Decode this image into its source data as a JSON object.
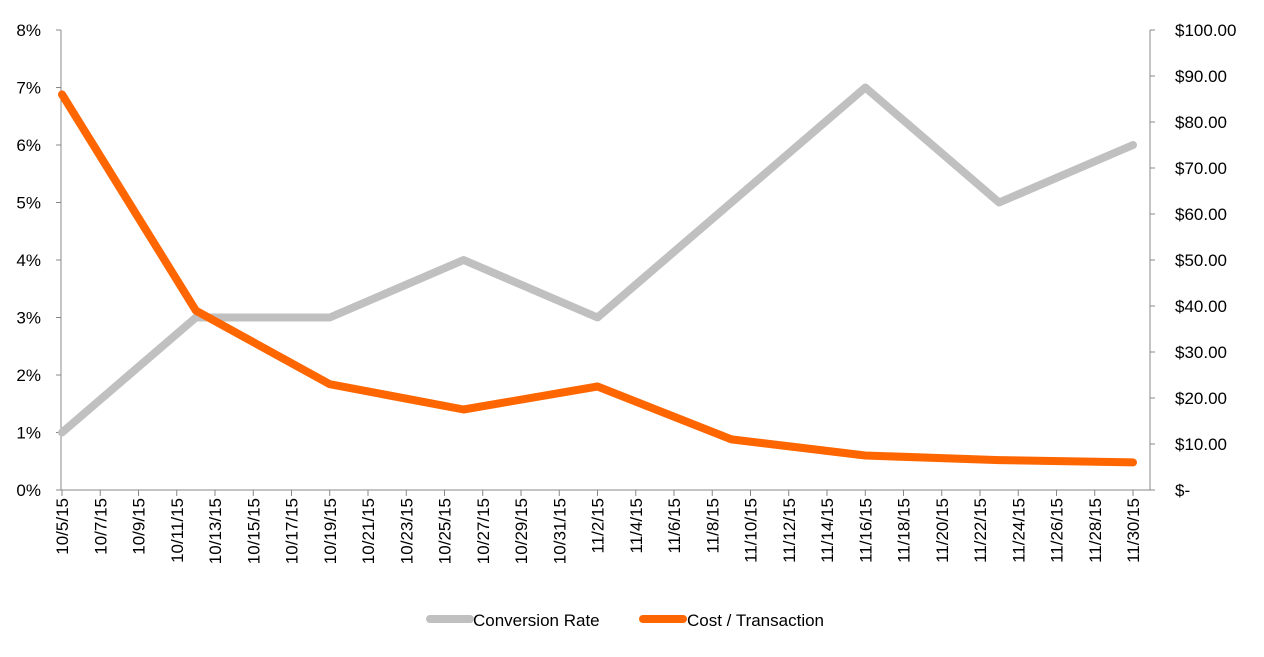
{
  "chart_data": {
    "type": "line",
    "x_tick_labels": [
      "10/5/15",
      "10/7/15",
      "10/9/15",
      "10/11/15",
      "10/13/15",
      "10/15/15",
      "10/17/15",
      "10/19/15",
      "10/21/15",
      "10/23/15",
      "10/25/15",
      "10/27/15",
      "10/29/15",
      "10/31/15",
      "11/2/15",
      "11/4/15",
      "11/6/15",
      "11/8/15",
      "11/10/15",
      "11/12/15",
      "11/14/15",
      "11/16/15",
      "11/18/15",
      "11/20/15",
      "11/22/15",
      "11/24/15",
      "11/26/15",
      "11/28/15",
      "11/30/15"
    ],
    "x": [
      "10/5/15",
      "10/12/15",
      "10/19/15",
      "10/26/15",
      "11/2/15",
      "11/9/15",
      "11/16/15",
      "11/23/15",
      "11/30/15"
    ],
    "series": [
      {
        "name": "Conversion Rate",
        "axis": "left",
        "color": "#c0c0c0",
        "values": [
          0.01,
          0.03,
          0.03,
          0.04,
          0.03,
          0.05,
          0.07,
          0.05,
          0.06
        ]
      },
      {
        "name": "Cost / Transaction",
        "axis": "right",
        "color": "#ff6600",
        "values": [
          86,
          39,
          23,
          17.5,
          22.5,
          11,
          7.5,
          6.5,
          6
        ]
      }
    ],
    "y_left": {
      "lim": [
        0,
        0.08
      ],
      "ticks": [
        0,
        0.01,
        0.02,
        0.03,
        0.04,
        0.05,
        0.06,
        0.07,
        0.08
      ],
      "tick_labels": [
        "0%",
        "1%",
        "2%",
        "3%",
        "4%",
        "5%",
        "6%",
        "7%",
        "8%"
      ]
    },
    "y_right": {
      "lim": [
        0,
        100
      ],
      "ticks": [
        0,
        10,
        20,
        30,
        40,
        50,
        60,
        70,
        80,
        90,
        100
      ],
      "tick_labels": [
        "$-",
        "$10.00",
        "$20.00",
        "$30.00",
        "$40.00",
        "$50.00",
        "$60.00",
        "$70.00",
        "$80.00",
        "$90.00",
        "$100.00"
      ]
    },
    "grid": false,
    "legend_position": "bottom"
  }
}
